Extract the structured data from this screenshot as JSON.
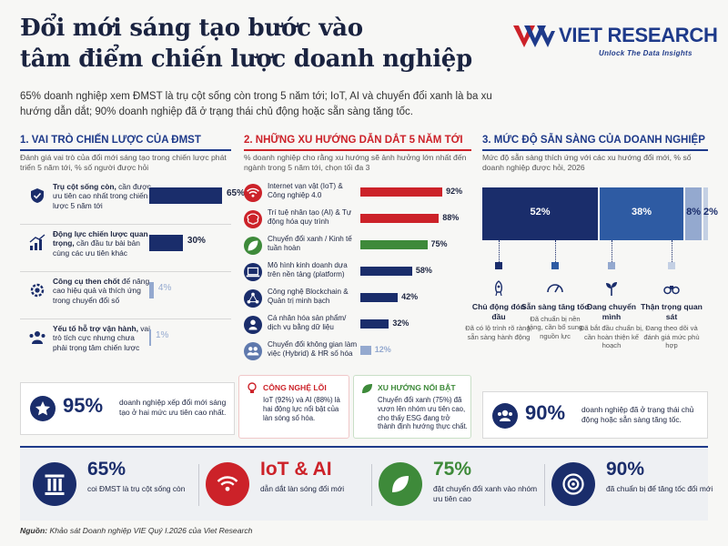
{
  "header": {
    "title_line1": "Đổi mới sáng tạo bước vào",
    "title_line2": "tâm điểm chiến lược doanh nghiệp",
    "subtitle": "65% doanh nghiệp xem ĐMST là trụ cột sống còn trong 5 năm tới; IoT, AI và chuyển đổi xanh là ba xu hướng dẫn dắt; 90% doanh nghiệp đã ở trạng thái chủ động hoặc sẵn sàng tăng tốc.",
    "logo_text": "VIET RESEARCH",
    "logo_tagline": "Unlock The Data Insights"
  },
  "colors": {
    "navy": "#1a2d6b",
    "red": "#cc2229",
    "green": "#3e8a3a",
    "light_blue": "#94a9cf"
  },
  "section1": {
    "heading": "1.  VAI TRÒ CHIẾN LƯỢC CỦA ĐMST",
    "description": "Đánh giá vai trò của đổi mới sáng tạo trong chiến lược phát triển 5 năm tới, % số người được hỏi",
    "items": [
      {
        "bold": "Trụ cột sống còn,",
        "rest": " cần được ưu tiên cao nhất trong chiến lược 5 năm tới",
        "value": 65,
        "label": "65%",
        "icon": "shield-check-icon"
      },
      {
        "bold": "Động lực chiến lược quan trọng,",
        "rest": " cần đầu tư bài bản cùng các ưu tiên khác",
        "value": 30,
        "label": "30%",
        "icon": "growth-chart-icon"
      },
      {
        "bold": "Công cụ then chốt",
        "rest": " để nâng cao hiệu quả và thích ứng trong chuyển đổi số",
        "value": 4,
        "label": "4%",
        "icon": "gear-icon"
      },
      {
        "bold": "Yếu tố hỗ trợ vận hành,",
        "rest": " vai trò tích cực nhưng chưa phải trọng tâm chiến lược",
        "value": 1,
        "label": "1%",
        "icon": "team-icon"
      }
    ],
    "callout_value": "95%",
    "callout_text": "doanh nghiệp xếp đổi mới sáng tạo ở hai mức ưu tiên cao nhất.",
    "callout_icon": "star-badge-icon"
  },
  "section2": {
    "heading": "2.  NHỮNG XU HƯỚNG DẪN DẮT 5 NĂM TỚI",
    "description": "% doanh nghiệp cho rằng xu hướng sẽ ảnh hưởng lớn nhất đến ngành trong 5 năm tới, chọn tối đa 3",
    "items": [
      {
        "label": "Internet vạn vật (IoT) & Công nghiệp 4.0",
        "value": 92,
        "value_label": "92%",
        "color": "#cc2229",
        "icon": "wifi-icon"
      },
      {
        "label": "Trí tuệ nhân tạo (AI) & Tự động hóa quy trình",
        "value": 88,
        "value_label": "88%",
        "color": "#cc2229",
        "icon": "brain-icon"
      },
      {
        "label": "Chuyển đổi xanh / Kinh tế tuần hoàn",
        "value": 75,
        "value_label": "75%",
        "color": "#3e8a3a",
        "icon": "leaf-icon"
      },
      {
        "label": "Mô hình kinh doanh dựa trên nền tảng (platform)",
        "value": 58,
        "value_label": "58%",
        "color": "#1a2d6b",
        "icon": "laptop-icon"
      },
      {
        "label": "Công nghệ Blockchain & Quản trị minh bạch",
        "value": 42,
        "value_label": "42%",
        "color": "#1a2d6b",
        "icon": "network-icon"
      },
      {
        "label": "Cá nhân hóa sản phẩm/ dịch vụ bằng dữ liệu",
        "value": 32,
        "value_label": "32%",
        "color": "#1a2d6b",
        "icon": "user-data-icon"
      },
      {
        "label": "Chuyển đổi không gian làm việc (Hybrid) & HR số hóa",
        "value": 12,
        "value_label": "12%",
        "color": "#94a9cf",
        "icon": "people-icon"
      }
    ],
    "card_core": {
      "title": "CÔNG NGHỆ LÕI",
      "text": "IoT (92%) và AI (88%) là hai động lực nổi bật của làn sóng số hóa.",
      "icon": "lightbulb-icon"
    },
    "card_trend": {
      "title": "XU HƯỚNG NỔI BẬT",
      "text": "Chuyển đổi xanh (75%) đã vươn lên nhóm ưu tiên cao, cho thấy ESG đang trở thành định hướng thực chất.",
      "icon": "leaf-icon"
    }
  },
  "section3": {
    "heading": "3.  MỨC ĐỘ SẴN SÀNG CỦA DOANH NGHIỆP",
    "description": "Mức độ sẵn sàng thích ứng với các xu hướng đổi mới, % số doanh nghiệp được hỏi, 2026",
    "segments": [
      {
        "value": 52,
        "label": "52%",
        "color": "#1a2d6b",
        "title": "Chủ động đón đầu",
        "desc": "Đã có lộ trình rõ ràng, sẵn sàng hành động",
        "icon": "rocket-icon"
      },
      {
        "value": 38,
        "label": "38%",
        "color": "#2e5ba3",
        "title": "Sẵn sàng tăng tốc",
        "desc": "Đã chuẩn bị nền tảng, cần bổ sung nguồn lực",
        "icon": "speedometer-icon"
      },
      {
        "value": 8,
        "label": "8%",
        "color": "#94a9cf",
        "title": "Đang chuyển mình",
        "desc": "Đã bắt đầu chuẩn bị, cần hoàn thiện kế hoạch",
        "icon": "sprout-icon"
      },
      {
        "value": 2,
        "label": "2%",
        "color": "#c4d0e4",
        "title": "Thận trọng quan sát",
        "desc": "Đang theo dõi và đánh giá mức phù hợp",
        "icon": "binoculars-icon"
      }
    ],
    "callout_value": "90%",
    "callout_text": "doanh nghiệp đã ở trạng thái chủ động hoặc sẵn sàng tăng tốc.",
    "callout_icon": "group-icon"
  },
  "bottom_kpis": [
    {
      "big": "65%",
      "sub": "coi ĐMST là trụ cột sống còn",
      "icon": "pillar-icon",
      "tone": "navy"
    },
    {
      "big": "IoT & AI",
      "sub": "dẫn dắt làn sóng đổi mới",
      "icon": "wifi-icon",
      "tone": "red"
    },
    {
      "big": "75%",
      "sub": "đặt chuyển đổi xanh vào nhóm ưu tiên cao",
      "icon": "leaf-icon",
      "tone": "green"
    },
    {
      "big": "90%",
      "sub": "đã chuẩn bị để tăng tốc đổi mới",
      "icon": "target-icon",
      "tone": "navy"
    }
  ],
  "source": {
    "label": "Nguồn:",
    "text": " Khảo sát Doanh nghiệp VIE Quý I.2026 của Viet Research"
  }
}
